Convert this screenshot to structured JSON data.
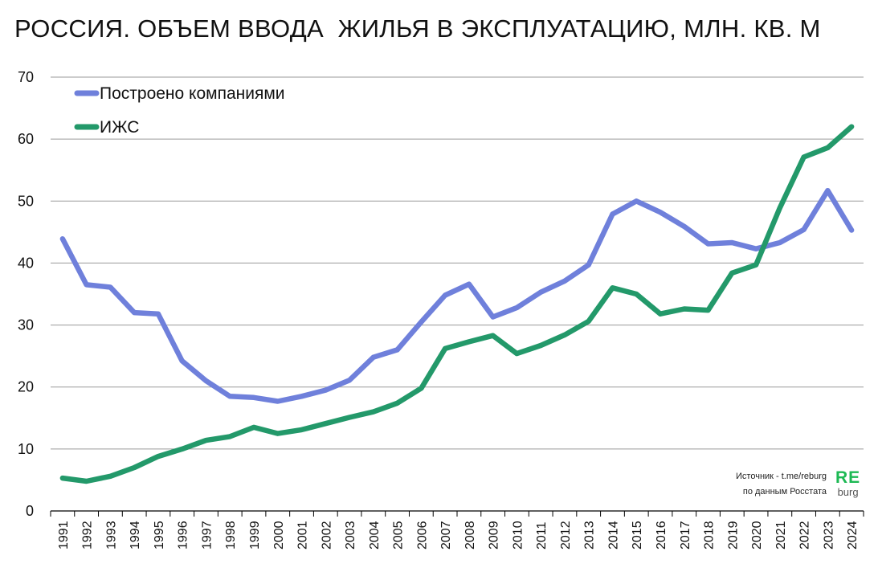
{
  "title": "РОССИЯ. ОБЪЕМ ВВОДА  ЖИЛЬЯ В ЭКСПЛУАТАЦИЮ, МЛН. КВ. М",
  "source": {
    "line1": "Источник - t.me/reburg",
    "line2": "по данным Росстата"
  },
  "logo": {
    "top": "RE",
    "bottom": "burg"
  },
  "colors": {
    "companies": "#6f80db",
    "izhs": "#23996a",
    "grid": "#9a9a9a",
    "axis": "#000000"
  },
  "chart_data": {
    "type": "line",
    "title": "РОССИЯ. ОБЪЕМ ВВОДА  ЖИЛЬЯ В ЭКСПЛУАТАЦИЮ, МЛН. КВ. М",
    "xlabel": "",
    "ylabel": "",
    "ylim": [
      0,
      70
    ],
    "yticks": [
      0,
      10,
      20,
      30,
      40,
      50,
      60,
      70
    ],
    "grid": true,
    "legend_position": "top-left",
    "x": [
      "1991",
      "1992",
      "1993",
      "1994",
      "1995",
      "1996",
      "1997",
      "1998",
      "1999",
      "2000",
      "2001",
      "2002",
      "2003",
      "2004",
      "2005",
      "2006",
      "2007",
      "2008",
      "2009",
      "2010",
      "2011",
      "2012",
      "2013",
      "2014",
      "2015",
      "2016",
      "2017",
      "2018",
      "2019",
      "2020",
      "2021",
      "2022",
      "2023",
      "2024"
    ],
    "series": [
      {
        "name": "Построено компаниями",
        "color": "#6f80db",
        "values": [
          43.9,
          36.5,
          36.1,
          32.0,
          31.8,
          24.2,
          21.0,
          18.5,
          18.3,
          17.7,
          18.5,
          19.5,
          21.1,
          24.8,
          26.0,
          30.5,
          34.8,
          36.6,
          31.3,
          32.8,
          35.3,
          37.1,
          39.7,
          47.9,
          50.0,
          48.2,
          45.9,
          43.1,
          43.3,
          42.3,
          43.3,
          45.4,
          51.7,
          45.3
        ]
      },
      {
        "name": "ИЖС",
        "color": "#23996a",
        "values": [
          5.3,
          4.8,
          5.6,
          7.0,
          8.8,
          10.0,
          11.4,
          12.0,
          13.5,
          12.5,
          13.1,
          14.1,
          15.1,
          16.0,
          17.4,
          19.8,
          26.2,
          27.3,
          28.3,
          25.4,
          26.7,
          28.4,
          30.6,
          36.0,
          35.0,
          31.8,
          32.6,
          32.4,
          38.4,
          39.7,
          48.9,
          57.1,
          58.6,
          62.0
        ]
      }
    ]
  }
}
